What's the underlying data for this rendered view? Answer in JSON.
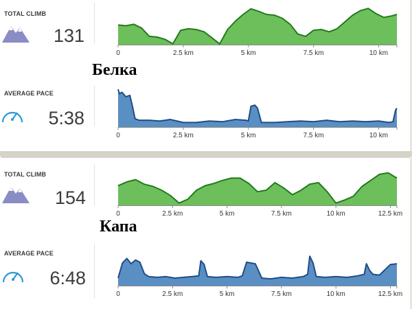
{
  "athletes": [
    {
      "name": "Белка",
      "climb": {
        "label": "TOTAL CLIMB",
        "value": "131",
        "icon": "mountain-icon"
      },
      "pace": {
        "label": "AVERAGE PACE",
        "value": "5:38",
        "icon": "speedometer-icon"
      }
    },
    {
      "name": "Капа",
      "climb": {
        "label": "TOTAL CLIMB",
        "value": "154",
        "icon": "mountain-icon"
      },
      "pace": {
        "label": "AVERAGE PACE",
        "value": "6:48",
        "icon": "speedometer-icon"
      }
    }
  ],
  "colors": {
    "elevation_fill": "#6dbf5c",
    "elevation_line": "#227a1c",
    "pace_fill": "#5a8fc4",
    "pace_line": "#1f4d85",
    "icon_mountain": "#8a8cc4",
    "icon_pace": "#2c9ad6"
  },
  "chart_data": [
    {
      "type": "area",
      "title": "",
      "xlabel": "",
      "ylabel": "",
      "x_ticks": [
        "0",
        "2.5 km",
        "5 km",
        "7.5 km",
        "10 km"
      ],
      "x_tick_values": [
        0,
        2.5,
        5,
        7.5,
        10
      ],
      "xlim": [
        0,
        10.7
      ],
      "ylim": [
        0,
        100
      ],
      "series": [
        {
          "x": [
            0,
            0.3,
            0.6,
            0.9,
            1.2,
            1.5,
            1.8,
            2.1,
            2.4,
            2.7,
            3.0,
            3.3,
            3.6,
            3.9,
            4.2,
            4.5,
            4.8,
            5.1,
            5.4,
            5.7,
            6.0,
            6.3,
            6.6,
            6.9,
            7.2,
            7.5,
            7.8,
            8.1,
            8.4,
            8.7,
            9.0,
            9.3,
            9.6,
            9.9,
            10.2,
            10.5,
            10.7
          ],
          "values": [
            52,
            50,
            54,
            44,
            22,
            20,
            14,
            2,
            38,
            42,
            40,
            34,
            18,
            2,
            40,
            62,
            80,
            95,
            88,
            80,
            78,
            70,
            54,
            28,
            22,
            38,
            40,
            34,
            42,
            60,
            78,
            90,
            96,
            82,
            72,
            76,
            80
          ]
        }
      ]
    },
    {
      "type": "area",
      "title": "",
      "xlabel": "",
      "ylabel": "",
      "x_ticks": [
        "0",
        "2.5 km",
        "5 km",
        "7.5 km",
        "10 km"
      ],
      "x_tick_values": [
        0,
        2.5,
        5,
        7.5,
        10
      ],
      "xlim": [
        0,
        10.7
      ],
      "ylim": [
        0,
        100
      ],
      "series": [
        {
          "x": [
            0,
            0.05,
            0.15,
            0.3,
            0.45,
            0.55,
            0.65,
            0.8,
            1.2,
            1.6,
            2.0,
            2.5,
            3.0,
            3.5,
            4.0,
            4.5,
            4.9,
            5.0,
            5.1,
            5.25,
            5.35,
            5.5,
            6.0,
            6.5,
            7.0,
            7.5,
            8.0,
            8.5,
            9.0,
            9.5,
            10.0,
            10.4,
            10.55,
            10.65,
            10.7
          ],
          "values": [
            100,
            88,
            92,
            80,
            84,
            55,
            22,
            18,
            18,
            16,
            20,
            12,
            12,
            16,
            14,
            20,
            18,
            16,
            55,
            58,
            50,
            12,
            12,
            14,
            16,
            14,
            18,
            14,
            16,
            14,
            16,
            12,
            14,
            45,
            50
          ]
        }
      ]
    },
    {
      "type": "area",
      "title": "",
      "xlabel": "",
      "ylabel": "",
      "x_ticks": [
        "0",
        "2.5 km",
        "5 km",
        "7.5 km",
        "10 km",
        "12.5 km"
      ],
      "x_tick_values": [
        0,
        2.5,
        5,
        7.5,
        10,
        12.5
      ],
      "xlim": [
        0,
        12.8
      ],
      "ylim": [
        0,
        100
      ],
      "series": [
        {
          "x": [
            0,
            0.4,
            0.8,
            1.2,
            1.6,
            2.0,
            2.4,
            2.8,
            3.2,
            3.6,
            4.0,
            4.4,
            4.8,
            5.2,
            5.6,
            6.0,
            6.4,
            6.8,
            7.2,
            7.6,
            8.0,
            8.4,
            8.8,
            9.2,
            9.6,
            10.0,
            10.4,
            10.8,
            11.2,
            11.6,
            12.0,
            12.4,
            12.8
          ],
          "values": [
            52,
            62,
            68,
            56,
            50,
            40,
            26,
            6,
            16,
            40,
            52,
            58,
            66,
            72,
            72,
            58,
            36,
            40,
            60,
            46,
            28,
            40,
            56,
            60,
            36,
            6,
            14,
            24,
            50,
            66,
            82,
            86,
            72
          ]
        }
      ]
    },
    {
      "type": "area",
      "title": "",
      "xlabel": "",
      "ylabel": "",
      "x_ticks": [
        "0",
        "2.5 km",
        "5 km",
        "7.5 km",
        "10 km",
        "12.5 km"
      ],
      "x_tick_values": [
        0,
        2.5,
        5,
        7.5,
        10,
        12.5
      ],
      "xlim": [
        0,
        12.8
      ],
      "ylim": [
        0,
        100
      ],
      "series": [
        {
          "x": [
            0,
            0.2,
            0.4,
            0.6,
            0.8,
            1.0,
            1.2,
            1.4,
            1.8,
            2.2,
            2.6,
            3.0,
            3.4,
            3.7,
            3.8,
            3.95,
            4.1,
            4.5,
            5.0,
            5.5,
            5.7,
            5.9,
            6.1,
            6.3,
            6.6,
            7.0,
            7.5,
            8.0,
            8.5,
            8.7,
            8.8,
            8.95,
            9.1,
            9.5,
            10.0,
            10.5,
            11.0,
            11.3,
            11.4,
            11.55,
            11.7,
            12.0,
            12.5,
            12.8
          ],
          "values": [
            20,
            60,
            72,
            58,
            68,
            62,
            32,
            24,
            22,
            24,
            20,
            22,
            24,
            26,
            66,
            56,
            24,
            22,
            24,
            22,
            26,
            62,
            60,
            58,
            20,
            18,
            22,
            20,
            24,
            30,
            78,
            60,
            24,
            22,
            24,
            22,
            26,
            30,
            58,
            40,
            30,
            28,
            56,
            58
          ]
        }
      ]
    }
  ]
}
